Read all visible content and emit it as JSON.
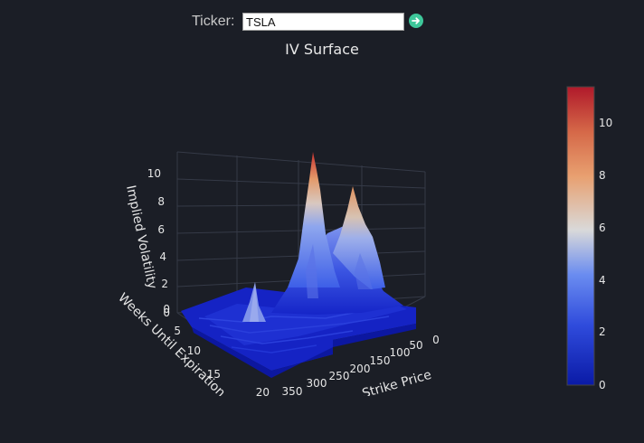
{
  "ticker": {
    "label": "Ticker:",
    "value": "TSLA",
    "go_icon": "arrow-right-circle-icon"
  },
  "chart_data": {
    "type": "surface",
    "title": "IV Surface",
    "axes": {
      "x": {
        "label": "Strike Price",
        "ticks": [
          0,
          50,
          100,
          150,
          200,
          250,
          300,
          350,
          400
        ]
      },
      "y": {
        "label": "Weeks Until Expiration",
        "ticks": [
          0,
          5,
          10,
          15,
          20
        ]
      },
      "z": {
        "label": "Implied Volatility",
        "ticks": [
          0,
          2,
          4,
          6,
          8,
          10
        ]
      }
    },
    "colorbar": {
      "min": 0,
      "max": 11.4,
      "ticks": [
        0,
        2,
        4,
        6,
        8,
        10
      ],
      "colorscale": "RdBu"
    },
    "peaks": [
      {
        "strike": 250,
        "weeks": 0,
        "iv": 11.2
      },
      {
        "strike": 175,
        "weeks": 0,
        "iv": 9.0
      },
      {
        "strike": 340,
        "weeks": 5,
        "iv": 2.2
      }
    ]
  }
}
